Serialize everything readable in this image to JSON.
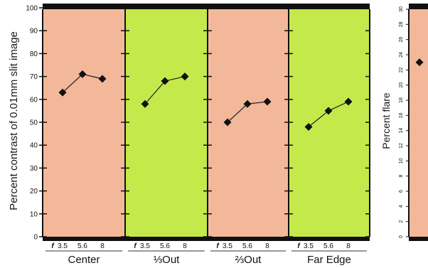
{
  "chart_data": [
    {
      "type": "line",
      "ylabel": "Percent contrast of 0.01mm slit image",
      "ylim": [
        0,
        100
      ],
      "yticks": [
        "0",
        "10",
        "20",
        "30",
        "40",
        "50",
        "60",
        "70",
        "80",
        "90",
        "100"
      ],
      "panels": [
        {
          "name": "Center",
          "color": "#f3b89a",
          "x": [
            "3.5",
            "5.6",
            "8"
          ],
          "values": [
            63,
            71,
            69
          ]
        },
        {
          "name": "⅓Out",
          "color": "#c3ea4a",
          "x": [
            "3.5",
            "5.6",
            "8"
          ],
          "values": [
            58,
            68,
            70
          ]
        },
        {
          "name": "⅔Out",
          "color": "#f3b89a",
          "x": [
            "3.5",
            "5.6",
            "8"
          ],
          "values": [
            50,
            58,
            59
          ]
        },
        {
          "name": "Far Edge",
          "color": "#c3ea4a",
          "x": [
            "3.5",
            "5.6",
            "8"
          ],
          "values": [
            48,
            55,
            59
          ]
        }
      ],
      "fstop_marker": "f"
    },
    {
      "type": "scatter",
      "ylabel": "Percent flare",
      "ylim": [
        0,
        30
      ],
      "yticks": [
        "0",
        "2",
        "4",
        "6",
        "8",
        "10",
        "12",
        "14",
        "16",
        "18",
        "20",
        "22",
        "24",
        "26",
        "28",
        "30"
      ],
      "panel_color": "#f3b89a",
      "values": [
        23
      ]
    }
  ]
}
